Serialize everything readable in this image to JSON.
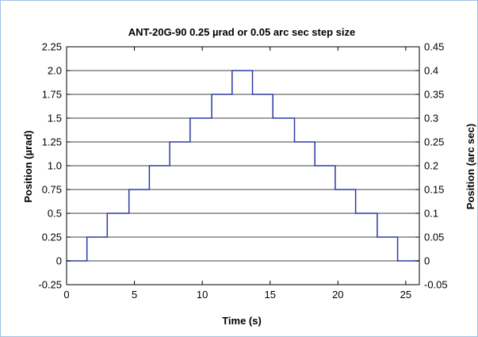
{
  "chart_data": {
    "type": "line",
    "title": "ANT-20G-90 0.25 µrad or 0.05 arc sec step size",
    "xlabel": "Time (s)",
    "ylabel": "Position (µrad)",
    "ylabel_right": "Position (arc sec)",
    "xlim": [
      0,
      26
    ],
    "ylim": [
      -0.25,
      2.25
    ],
    "ylim_right": [
      -0.05,
      0.45
    ],
    "xticks": [
      0,
      5,
      10,
      15,
      20,
      25
    ],
    "yticks": [
      -0.25,
      0,
      0.25,
      0.5,
      0.75,
      1.0,
      1.25,
      1.5,
      1.75,
      2.0,
      2.25
    ],
    "ytick_labels": [
      "-0.25",
      "0",
      "0.25",
      "0.5",
      "0.75",
      "1.0",
      "1.25",
      "1.5",
      "1.75",
      "2.0",
      "2.25"
    ],
    "yticks_right": [
      -0.05,
      0,
      0.05,
      0.1,
      0.15,
      0.2,
      0.25,
      0.3,
      0.35,
      0.4,
      0.45
    ],
    "ytick_labels_right": [
      "-0.05",
      "0",
      "0.05",
      "0.1",
      "0.15",
      "0.2",
      "0.25",
      "0.3",
      "0.35",
      "0.4",
      "0.45"
    ],
    "grid": "horizontal",
    "series": [
      {
        "color": "#2b3aa3",
        "x": [
          0,
          1.5,
          1.5,
          3.0,
          3.0,
          4.6,
          4.6,
          6.1,
          6.1,
          7.6,
          7.6,
          9.1,
          9.1,
          10.7,
          10.7,
          12.2,
          12.2,
          13.7,
          13.7,
          15.2,
          15.2,
          16.8,
          16.8,
          18.3,
          18.3,
          19.8,
          19.8,
          21.3,
          21.3,
          22.9,
          22.9,
          24.4,
          24.4,
          26
        ],
        "y": [
          0,
          0,
          0.25,
          0.25,
          0.5,
          0.5,
          0.75,
          0.75,
          1.0,
          1.0,
          1.25,
          1.25,
          1.5,
          1.5,
          1.75,
          1.75,
          2.0,
          2.0,
          1.75,
          1.75,
          1.5,
          1.5,
          1.25,
          1.25,
          1.0,
          1.0,
          0.75,
          0.75,
          0.5,
          0.5,
          0.25,
          0.25,
          0,
          0
        ]
      }
    ]
  }
}
